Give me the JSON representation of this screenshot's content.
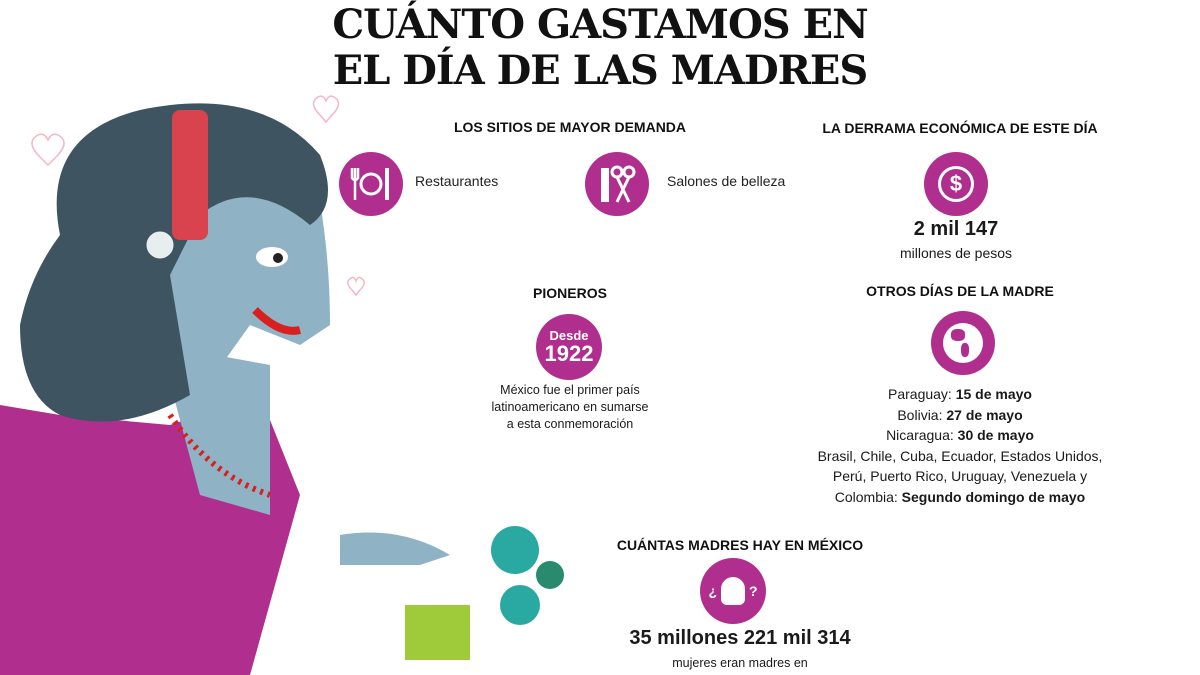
{
  "title": {
    "line1": "CUÁNTO GASTAMOS EN",
    "line2": "EL DÍA DE LAS MADRES"
  },
  "colors": {
    "accent": "#b02f8e",
    "skin": "#8fb3c4",
    "hair": "#3e5561",
    "dress": "#b02f8e"
  },
  "sitios": {
    "heading": "LOS SITIOS DE MAYOR DEMANDA",
    "items": [
      {
        "icon": "plate-cutlery-icon",
        "label": "Restaurantes"
      },
      {
        "icon": "comb-scissors-icon",
        "label": "Salones de belleza"
      }
    ]
  },
  "derrama": {
    "heading": "LA DERRAMA ECONÓMICA DE ESTE DÍA",
    "icon": "dollar-icon",
    "value": "2 mil 147",
    "unit": "millones de pesos"
  },
  "pioneros": {
    "heading": "PIONEROS",
    "badge_top": "Desde",
    "badge_year": "1922",
    "text": [
      "México fue el primer país",
      "latinoamericano en sumarse",
      "a esta conmemoración"
    ]
  },
  "otros": {
    "heading": "OTROS DÍAS DE LA MADRE",
    "icon": "globe-icon",
    "rows": [
      {
        "country": "Paraguay: ",
        "date": "15 de mayo"
      },
      {
        "country": "Bolivia: ",
        "date": "27 de mayo"
      },
      {
        "country": "Nicaragua: ",
        "date": "30 de mayo"
      }
    ],
    "list": [
      "Brasil, Chile, Cuba, Ecuador, Estados Unidos,",
      "Perú, Puerto Rico, Uruguay, Venezuela y"
    ],
    "last_country": "Colombia: ",
    "last_date": "Segundo domingo de mayo"
  },
  "madres": {
    "heading": "CUÁNTAS MADRES HAY EN MÉXICO",
    "icon": "mother-question-icon",
    "value": "35 millones 221 mil 314",
    "text": "mujeres eran madres en"
  }
}
